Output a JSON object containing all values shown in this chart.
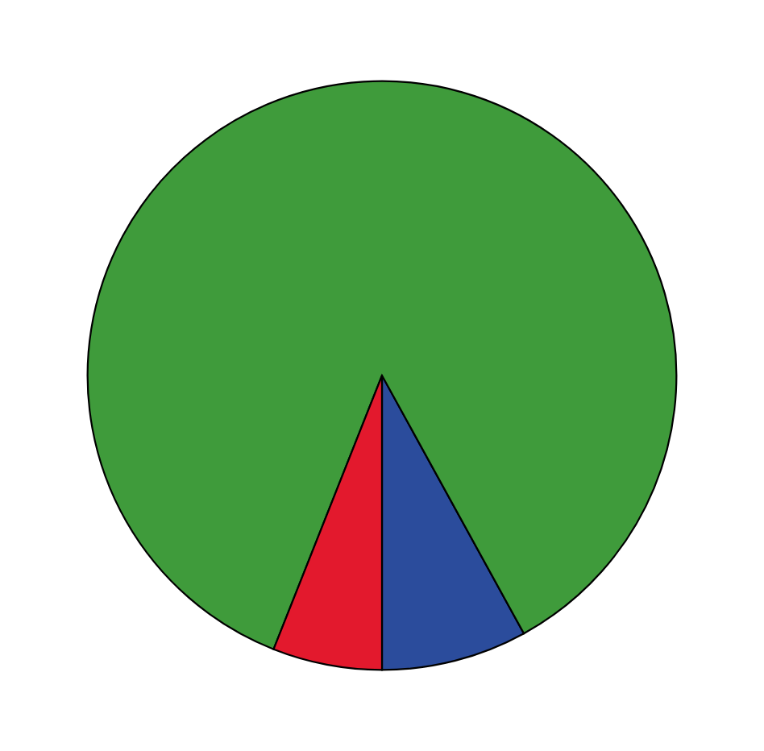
{
  "chart_data": {
    "type": "pie",
    "categories": [
      null,
      null,
      null
    ],
    "values": [
      8,
      86,
      6
    ],
    "colors": [
      "#2b4c9c",
      "#3f9b3b",
      "#e3192d"
    ]
  }
}
